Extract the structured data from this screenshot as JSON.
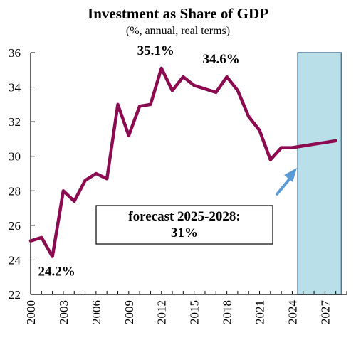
{
  "chart_data": {
    "type": "line",
    "title": "Investment as Share of GDP",
    "subtitle": "(%, annual, real terms)",
    "xlabel": "",
    "ylabel": "",
    "ylim": [
      22,
      36
    ],
    "yticks": [
      "22",
      "24",
      "26",
      "28",
      "30",
      "32",
      "34",
      "36"
    ],
    "xlim": [
      2000,
      2029
    ],
    "xticks": [
      "2000",
      "2003",
      "2006",
      "2009",
      "2012",
      "2015",
      "2018",
      "2021",
      "2024",
      "2027"
    ],
    "grid": false,
    "forecast_region": [
      2024.5,
      2028.5
    ],
    "series": [
      {
        "color": "#8b0a50",
        "points": [
          [
            2000,
            25.1
          ],
          [
            2001,
            25.3
          ],
          [
            2002,
            24.2
          ],
          [
            2003,
            28.0
          ],
          [
            2004,
            27.4
          ],
          [
            2005,
            28.6
          ],
          [
            2006,
            29.0
          ],
          [
            2007,
            28.7
          ],
          [
            2008,
            33.0
          ],
          [
            2009,
            31.2
          ],
          [
            2010,
            32.9
          ],
          [
            2011,
            33.0
          ],
          [
            2012,
            35.1
          ],
          [
            2013,
            33.8
          ],
          [
            2014,
            34.6
          ],
          [
            2015,
            34.1
          ],
          [
            2016,
            33.9
          ],
          [
            2017,
            33.7
          ],
          [
            2018,
            34.6
          ],
          [
            2019,
            33.8
          ],
          [
            2020,
            32.3
          ],
          [
            2021,
            31.5
          ],
          [
            2022,
            29.8
          ],
          [
            2023,
            30.5
          ],
          [
            2024,
            30.5
          ],
          [
            2025,
            30.6
          ],
          [
            2026,
            30.7
          ],
          [
            2027,
            30.8
          ],
          [
            2028,
            30.9
          ]
        ]
      }
    ],
    "annotations": [
      {
        "text": "35.1%",
        "x": 2012,
        "y": 35.1
      },
      {
        "text": "34.6%",
        "x": 2018,
        "y": 34.6
      },
      {
        "text": "24.2%",
        "x": 2002,
        "y": 24.2
      }
    ],
    "callout": {
      "line1": "forecast 2025-2028:",
      "line2": "31%"
    },
    "colors": {
      "line": "#8b0a50",
      "forecast_fill": "#b9dfe9",
      "forecast_border": "#4a7a9b",
      "arrow": "#5b9bd5"
    }
  }
}
